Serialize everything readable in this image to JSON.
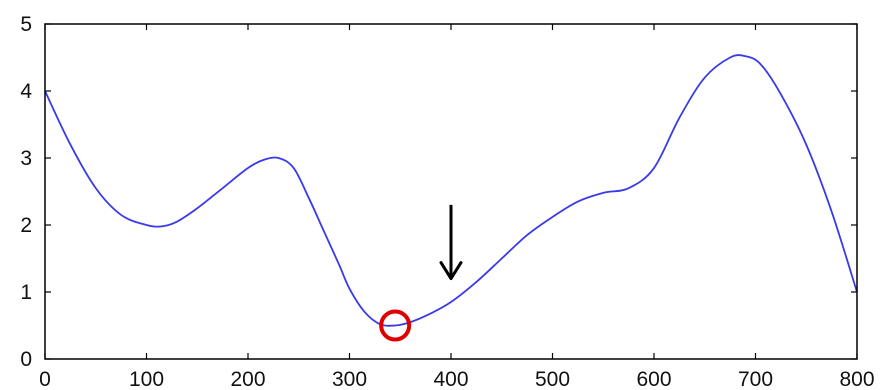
{
  "chart_data": {
    "type": "line",
    "x_ticks": [
      "0",
      "100",
      "200",
      "300",
      "400",
      "500",
      "600",
      "700",
      "800"
    ],
    "y_ticks": [
      "0",
      "1",
      "2",
      "3",
      "4",
      "5"
    ],
    "xlim": [
      0,
      800
    ],
    "ylim": [
      0,
      5
    ],
    "grid": false,
    "series": [
      {
        "color": "#3a3ae8",
        "x": [
          0,
          25,
          50,
          75,
          100,
          115,
          130,
          150,
          175,
          200,
          215,
          230,
          245,
          260,
          275,
          290,
          300,
          315,
          330,
          345,
          360,
          380,
          400,
          425,
          450,
          475,
          500,
          525,
          550,
          575,
          600,
          625,
          650,
          675,
          690,
          705,
          725,
          750,
          775,
          800
        ],
        "y": [
          4.0,
          3.2,
          2.55,
          2.15,
          2.0,
          1.98,
          2.05,
          2.25,
          2.55,
          2.85,
          2.97,
          3.0,
          2.85,
          2.4,
          1.9,
          1.4,
          1.05,
          0.7,
          0.52,
          0.5,
          0.55,
          0.68,
          0.85,
          1.15,
          1.5,
          1.85,
          2.12,
          2.35,
          2.48,
          2.55,
          2.85,
          3.6,
          4.2,
          4.5,
          4.52,
          4.4,
          3.95,
          3.2,
          2.2,
          1.0
        ]
      }
    ],
    "annotations": [
      {
        "type": "circle",
        "color": "#e00000",
        "x": 345,
        "y": 0.5
      },
      {
        "type": "arrow",
        "direction": "down",
        "color": "#000000",
        "x": 400,
        "y_from": 2.3,
        "y_to": 1.2
      }
    ]
  }
}
